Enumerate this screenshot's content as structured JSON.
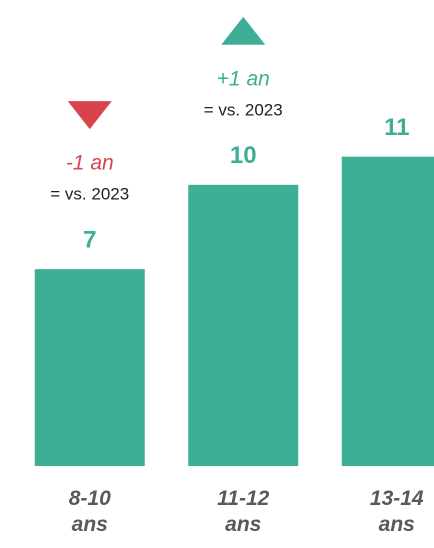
{
  "chart_data": {
    "type": "bar",
    "categories": [
      "8-10\nans",
      "11-12\nans",
      "13-14\nans"
    ],
    "values": [
      7,
      10,
      11
    ],
    "color": "#3fae96",
    "ylim": [
      0,
      16.5
    ],
    "annotations": [
      {
        "category": 0,
        "direction": "down",
        "change": "-1 an",
        "note": "= vs. 2023",
        "color": "#d9434b"
      },
      {
        "category": 1,
        "direction": "up",
        "change": "+1 an",
        "note": "= vs. 2023",
        "color": "#3fae96"
      }
    ]
  }
}
